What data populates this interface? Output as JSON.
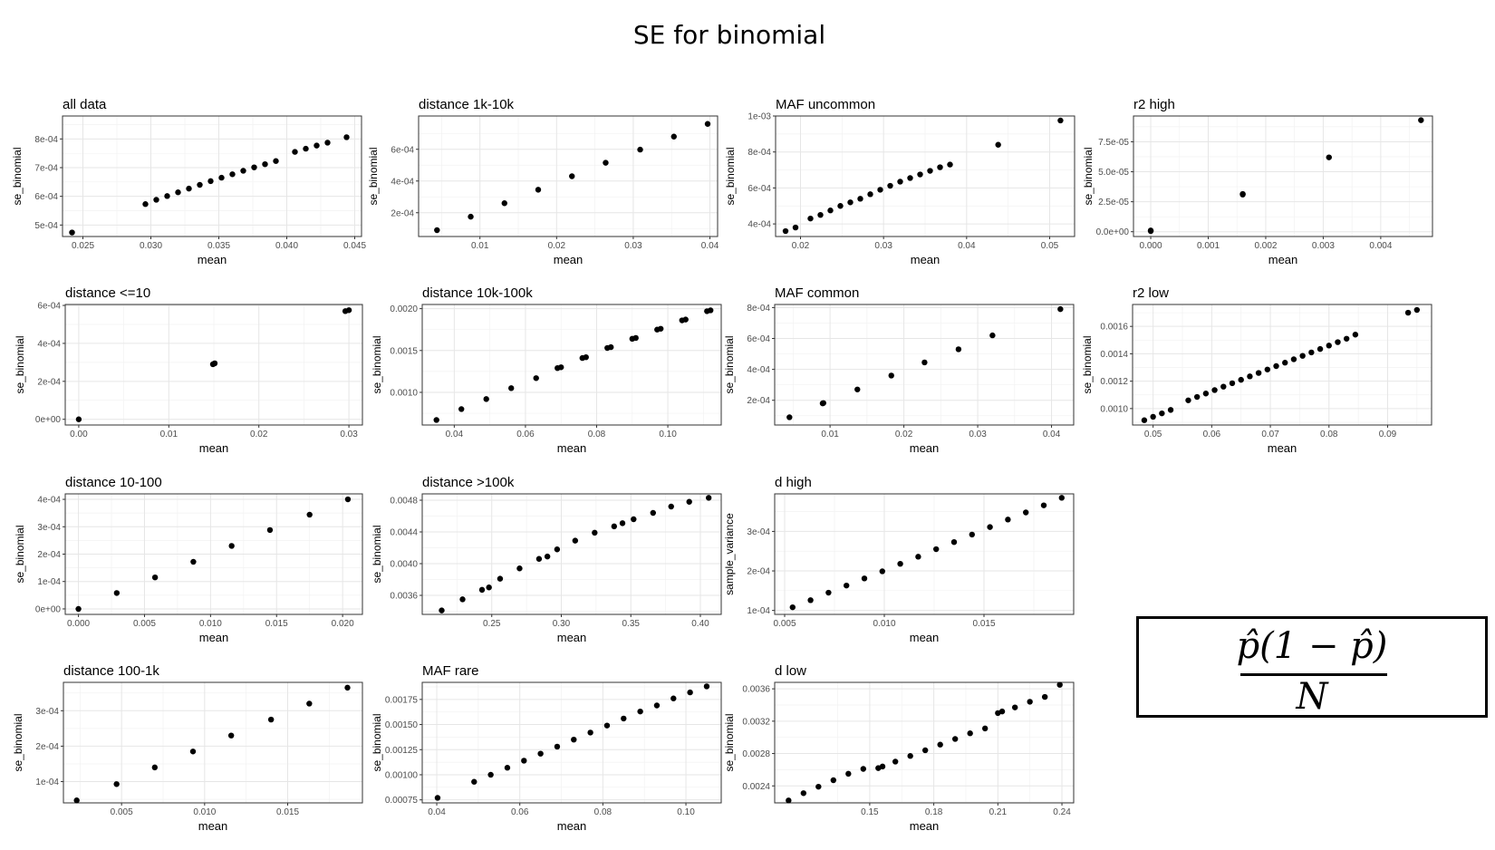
{
  "title": "SE for binomial",
  "formula": {
    "numerator": "p̂(1 − p̂)",
    "denominator": "N"
  },
  "chart_data": [
    {
      "type": "scatter",
      "title": "all data",
      "xlabel": "mean",
      "ylabel": "se_binomial",
      "xlim": [
        0.0235,
        0.0455
      ],
      "ylim": [
        0.00046,
        0.00088
      ],
      "xticks": [
        0.025,
        0.03,
        0.035,
        0.04,
        0.045
      ],
      "xtick_labels": [
        "0.025",
        "0.030",
        "0.035",
        "0.040",
        "0.045"
      ],
      "yticks": [
        0.0005,
        0.0006,
        0.0007,
        0.0008
      ],
      "ytick_labels": [
        "5e-04",
        "6e-04",
        "7e-04",
        "8e-04"
      ],
      "x": [
        0.0242,
        0.0296,
        0.0304,
        0.0312,
        0.032,
        0.0328,
        0.0336,
        0.0344,
        0.0352,
        0.036,
        0.0368,
        0.0376,
        0.0384,
        0.0392,
        0.0406,
        0.0414,
        0.0422,
        0.043,
        0.0444
      ],
      "y": [
        0.000474,
        0.000573,
        0.000588,
        0.000601,
        0.000614,
        0.000627,
        0.00064,
        0.000653,
        0.000665,
        0.000677,
        0.000689,
        0.000701,
        0.000712,
        0.000723,
        0.000755,
        0.000766,
        0.000777,
        0.000787,
        0.000806
      ]
    },
    {
      "type": "scatter",
      "title": "distance 1k-10k",
      "xlabel": "mean",
      "ylabel": "se_binomial",
      "xlim": [
        0.002,
        0.041
      ],
      "ylim": [
        5e-05,
        0.00081
      ],
      "xticks": [
        0.01,
        0.02,
        0.03,
        0.04
      ],
      "xtick_labels": [
        "0.01",
        "0.02",
        "0.03",
        "0.04"
      ],
      "yticks": [
        0.0002,
        0.0004,
        0.0006
      ],
      "ytick_labels": [
        "2e-04",
        "4e-04",
        "6e-04"
      ],
      "x": [
        0.0044,
        0.0088,
        0.0132,
        0.0176,
        0.022,
        0.0264,
        0.0309,
        0.0353,
        0.0397
      ],
      "y": [
        9e-05,
        0.000175,
        0.00026,
        0.000345,
        0.00043,
        0.000515,
        0.000598,
        0.00068,
        0.00076
      ]
    },
    {
      "type": "scatter",
      "title": "MAF uncommon",
      "xlabel": "mean",
      "ylabel": "se_binomial",
      "xlim": [
        0.017,
        0.053
      ],
      "ylim": [
        0.00033,
        0.001
      ],
      "xticks": [
        0.02,
        0.03,
        0.04,
        0.05
      ],
      "xtick_labels": [
        "0.02",
        "0.03",
        "0.04",
        "0.05"
      ],
      "yticks": [
        0.0004,
        0.0006,
        0.0008,
        0.001
      ],
      "ytick_labels": [
        "4e-04",
        "6e-04",
        "8e-04",
        "1e-03"
      ],
      "x": [
        0.0182,
        0.0194,
        0.0212,
        0.0224,
        0.0236,
        0.0248,
        0.026,
        0.0272,
        0.0284,
        0.0296,
        0.0308,
        0.032,
        0.0332,
        0.0344,
        0.0356,
        0.0368,
        0.038,
        0.0438,
        0.0513
      ],
      "y": [
        0.00036,
        0.00038,
        0.00043,
        0.00045,
        0.000475,
        0.0005,
        0.00052,
        0.00054,
        0.000565,
        0.00059,
        0.000612,
        0.000635,
        0.000655,
        0.000675,
        0.000695,
        0.000715,
        0.00073,
        0.00084,
        0.000975
      ]
    },
    {
      "type": "scatter",
      "title": "r2 high",
      "xlabel": "mean",
      "ylabel": "se_binomial",
      "xlim": [
        -0.0003,
        0.0049
      ],
      "ylim": [
        -4e-06,
        9.65e-05
      ],
      "xticks": [
        0,
        0.001,
        0.002,
        0.003,
        0.004
      ],
      "xtick_labels": [
        "0.000",
        "0.001",
        "0.002",
        "0.003",
        "0.004"
      ],
      "yticks": [
        0,
        2.5e-05,
        5e-05,
        7.5e-05
      ],
      "ytick_labels": [
        "0.0e+00",
        "2.5e-05",
        "5.0e-05",
        "7.5e-05"
      ],
      "x": [
        0.0,
        0.0,
        0.0016,
        0.0016,
        0.0031,
        0.0047
      ],
      "y": [
        5e-07,
        1e-06,
        3.1e-05,
        3.15e-05,
        6.2e-05,
        9.3e-05
      ]
    },
    {
      "type": "scatter",
      "title": "distance <=10",
      "xlabel": "mean",
      "ylabel": "se_binomial",
      "xlim": [
        -0.0015,
        0.0315
      ],
      "ylim": [
        -3e-05,
        0.000605
      ],
      "xticks": [
        0,
        0.01,
        0.02,
        0.03
      ],
      "xtick_labels": [
        "0.00",
        "0.01",
        "0.02",
        "0.03"
      ],
      "yticks": [
        0,
        0.0002,
        0.0004,
        0.0006
      ],
      "ytick_labels": [
        "0e+00",
        "2e-04",
        "4e-04",
        "6e-04"
      ],
      "x": [
        0.0,
        0.0149,
        0.0151,
        0.0296,
        0.03
      ],
      "y": [
        0.0,
        0.00029,
        0.000295,
        0.00057,
        0.000575
      ]
    },
    {
      "type": "scatter",
      "title": "distance 10k-100k",
      "xlabel": "mean",
      "ylabel": "se_binomial",
      "xlim": [
        0.031,
        0.115
      ],
      "ylim": [
        0.00061,
        0.00205
      ],
      "xticks": [
        0.04,
        0.06,
        0.08,
        0.1
      ],
      "xtick_labels": [
        "0.04",
        "0.06",
        "0.08",
        "0.10"
      ],
      "yticks": [
        0.001,
        0.0015,
        0.002
      ],
      "ytick_labels": [
        "0.0010",
        "0.0015",
        "0.0020"
      ],
      "x": [
        0.035,
        0.042,
        0.049,
        0.056,
        0.063,
        0.069,
        0.07,
        0.076,
        0.077,
        0.083,
        0.084,
        0.09,
        0.091,
        0.097,
        0.098,
        0.104,
        0.105,
        0.111,
        0.112
      ],
      "y": [
        0.00067,
        0.0008,
        0.00092,
        0.00105,
        0.00117,
        0.00129,
        0.0013,
        0.00141,
        0.00142,
        0.00153,
        0.00154,
        0.00164,
        0.00165,
        0.00175,
        0.00176,
        0.00186,
        0.00187,
        0.00197,
        0.00198
      ]
    },
    {
      "type": "scatter",
      "title": "MAF common",
      "xlabel": "mean",
      "ylabel": "se_binomial",
      "xlim": [
        0.0025,
        0.043
      ],
      "ylim": [
        4e-05,
        0.00082
      ],
      "xticks": [
        0.01,
        0.02,
        0.03,
        0.04
      ],
      "xtick_labels": [
        "0.01",
        "0.02",
        "0.03",
        "0.04"
      ],
      "yticks": [
        0.0002,
        0.0004,
        0.0006,
        0.0008
      ],
      "ytick_labels": [
        "2e-04",
        "4e-04",
        "6e-04",
        "8e-04"
      ],
      "x": [
        0.0045,
        0.009,
        0.0091,
        0.0137,
        0.0183,
        0.0228,
        0.0274,
        0.032,
        0.0412
      ],
      "y": [
        9e-05,
        0.00018,
        0.000182,
        0.00027,
        0.00036,
        0.000445,
        0.00053,
        0.00062,
        0.00079
      ]
    },
    {
      "type": "scatter",
      "title": "r2 low",
      "xlabel": "mean",
      "ylabel": "se_binomial",
      "xlim": [
        0.0465,
        0.0975
      ],
      "ylim": [
        0.00088,
        0.00176
      ],
      "xticks": [
        0.05,
        0.06,
        0.07,
        0.08,
        0.09
      ],
      "xtick_labels": [
        "0.05",
        "0.06",
        "0.07",
        "0.08",
        "0.09"
      ],
      "yticks": [
        0.001,
        0.0012,
        0.0014,
        0.0016
      ],
      "ytick_labels": [
        "0.0010",
        "0.0012",
        "0.0014",
        "0.0016"
      ],
      "x": [
        0.0485,
        0.05,
        0.0515,
        0.053,
        0.056,
        0.0575,
        0.059,
        0.0605,
        0.062,
        0.0635,
        0.065,
        0.0665,
        0.068,
        0.0695,
        0.071,
        0.0725,
        0.074,
        0.0755,
        0.077,
        0.0785,
        0.08,
        0.0815,
        0.083,
        0.0845,
        0.0935,
        0.095
      ],
      "y": [
        0.000915,
        0.00094,
        0.000965,
        0.00099,
        0.00106,
        0.001085,
        0.00111,
        0.001135,
        0.00116,
        0.001185,
        0.00121,
        0.001235,
        0.00126,
        0.001285,
        0.00131,
        0.001335,
        0.00136,
        0.001385,
        0.00141,
        0.001435,
        0.00146,
        0.001485,
        0.00151,
        0.00154,
        0.0017,
        0.00172
      ]
    },
    {
      "type": "scatter",
      "title": "distance 10-100",
      "xlabel": "mean",
      "ylabel": "se_binomial",
      "xlim": [
        -0.001,
        0.0215
      ],
      "ylim": [
        -2e-05,
        0.00042
      ],
      "xticks": [
        0,
        0.005,
        0.01,
        0.015,
        0.02
      ],
      "xtick_labels": [
        "0.000",
        "0.005",
        "0.010",
        "0.015",
        "0.020"
      ],
      "yticks": [
        0,
        0.0001,
        0.0002,
        0.0003,
        0.0004
      ],
      "ytick_labels": [
        "0e+00",
        "1e-04",
        "2e-04",
        "3e-04",
        "4e-04"
      ],
      "x": [
        0.0,
        0.0029,
        0.0058,
        0.0087,
        0.0116,
        0.0145,
        0.0175,
        0.0204
      ],
      "y": [
        0.0,
        5.8e-05,
        0.000115,
        0.000172,
        0.00023,
        0.000288,
        0.000344,
        0.0004
      ]
    },
    {
      "type": "scatter",
      "title": "distance >100k",
      "xlabel": "mean",
      "ylabel": "se_binomial",
      "xlim": [
        0.2,
        0.415
      ],
      "ylim": [
        0.00336,
        0.00488
      ],
      "xticks": [
        0.25,
        0.3,
        0.35,
        0.4
      ],
      "xtick_labels": [
        "0.25",
        "0.30",
        "0.35",
        "0.40"
      ],
      "yticks": [
        0.0036,
        0.004,
        0.0044,
        0.0048
      ],
      "ytick_labels": [
        "0.0036",
        "0.0040",
        "0.0044",
        "0.0048"
      ],
      "x": [
        0.214,
        0.229,
        0.243,
        0.248,
        0.256,
        0.27,
        0.284,
        0.29,
        0.297,
        0.31,
        0.324,
        0.338,
        0.344,
        0.352,
        0.366,
        0.379,
        0.392,
        0.406
      ],
      "y": [
        0.00341,
        0.00355,
        0.00367,
        0.0037,
        0.00381,
        0.00394,
        0.00406,
        0.00409,
        0.00418,
        0.00429,
        0.00439,
        0.00447,
        0.00451,
        0.00456,
        0.00464,
        0.00472,
        0.00478,
        0.00483
      ]
    },
    {
      "type": "scatter",
      "title": "d high",
      "xlabel": "mean",
      "ylabel": "sample_variance",
      "xlim": [
        0.0045,
        0.0195
      ],
      "ylim": [
        9e-05,
        0.000395
      ],
      "xticks": [
        0.005,
        0.01,
        0.015
      ],
      "xtick_labels": [
        "0.005",
        "0.010",
        "0.015"
      ],
      "yticks": [
        0.0001,
        0.0002,
        0.0003
      ],
      "ytick_labels": [
        "1e-04",
        "2e-04",
        "3e-04"
      ],
      "x": [
        0.0054,
        0.0063,
        0.0072,
        0.0081,
        0.009,
        0.0099,
        0.0108,
        0.0117,
        0.0126,
        0.0135,
        0.0144,
        0.0153,
        0.0162,
        0.0171,
        0.018,
        0.0189
      ],
      "y": [
        0.000108,
        0.000126,
        0.000145,
        0.000163,
        0.000181,
        0.000199,
        0.000218,
        0.000236,
        0.000255,
        0.000273,
        0.000292,
        0.000311,
        0.00033,
        0.000348,
        0.000366,
        0.000385
      ]
    },
    {
      "type": "scatter",
      "title": "distance 100-1k",
      "xlabel": "mean",
      "ylabel": "se_binomial",
      "xlim": [
        0.0015,
        0.0195
      ],
      "ylim": [
        4e-05,
        0.00038
      ],
      "xticks": [
        0.005,
        0.01,
        0.015
      ],
      "xtick_labels": [
        "0.005",
        "0.010",
        "0.015"
      ],
      "yticks": [
        0.0001,
        0.0002,
        0.0003
      ],
      "ytick_labels": [
        "1e-04",
        "2e-04",
        "3e-04"
      ],
      "x": [
        0.0023,
        0.0047,
        0.007,
        0.0093,
        0.0116,
        0.014,
        0.0163,
        0.0186
      ],
      "y": [
        4.7e-05,
        9.3e-05,
        0.00014,
        0.000185,
        0.00023,
        0.000275,
        0.00032,
        0.000365
      ]
    },
    {
      "type": "scatter",
      "title": "MAF rare",
      "xlabel": "mean",
      "ylabel": "se_binomial",
      "xlim": [
        0.0365,
        0.1085
      ],
      "ylim": [
        0.00072,
        0.00192
      ],
      "xticks": [
        0.04,
        0.06,
        0.08,
        0.1
      ],
      "xtick_labels": [
        "0.04",
        "0.06",
        "0.08",
        "0.10"
      ],
      "yticks": [
        0.00075,
        0.001,
        0.00125,
        0.0015,
        0.00175
      ],
      "ytick_labels": [
        "0.00075",
        "0.00100",
        "0.00125",
        "0.00150",
        "0.00175"
      ],
      "x": [
        0.0402,
        0.049,
        0.053,
        0.057,
        0.061,
        0.065,
        0.069,
        0.073,
        0.077,
        0.081,
        0.085,
        0.089,
        0.093,
        0.097,
        0.101,
        0.105
      ],
      "y": [
        0.00077,
        0.00093,
        0.001,
        0.00107,
        0.00114,
        0.00121,
        0.00128,
        0.00135,
        0.00142,
        0.00149,
        0.00156,
        0.00163,
        0.00169,
        0.00176,
        0.00182,
        0.00188
      ]
    },
    {
      "type": "scatter",
      "title": "d low",
      "xlabel": "mean",
      "ylabel": "se_binomial",
      "xlim": [
        0.1055,
        0.2455
      ],
      "ylim": [
        0.00219,
        0.00368
      ],
      "xticks": [
        0.15,
        0.18,
        0.21,
        0.24
      ],
      "xtick_labels": [
        "0.15",
        "0.18",
        "0.21",
        "0.24"
      ],
      "yticks": [
        0.0024,
        0.0028,
        0.0032,
        0.0036
      ],
      "ytick_labels": [
        "0.0024",
        "0.0028",
        "0.0032",
        "0.0036"
      ],
      "x": [
        0.112,
        0.119,
        0.126,
        0.133,
        0.14,
        0.147,
        0.154,
        0.156,
        0.162,
        0.169,
        0.176,
        0.183,
        0.19,
        0.197,
        0.204,
        0.21,
        0.212,
        0.218,
        0.225,
        0.232,
        0.239
      ],
      "y": [
        0.00222,
        0.00231,
        0.00239,
        0.00247,
        0.00255,
        0.00261,
        0.00262,
        0.00264,
        0.0027,
        0.00277,
        0.00284,
        0.00291,
        0.00298,
        0.00305,
        0.00311,
        0.0033,
        0.00332,
        0.00337,
        0.00344,
        0.0035,
        0.00365
      ]
    }
  ]
}
